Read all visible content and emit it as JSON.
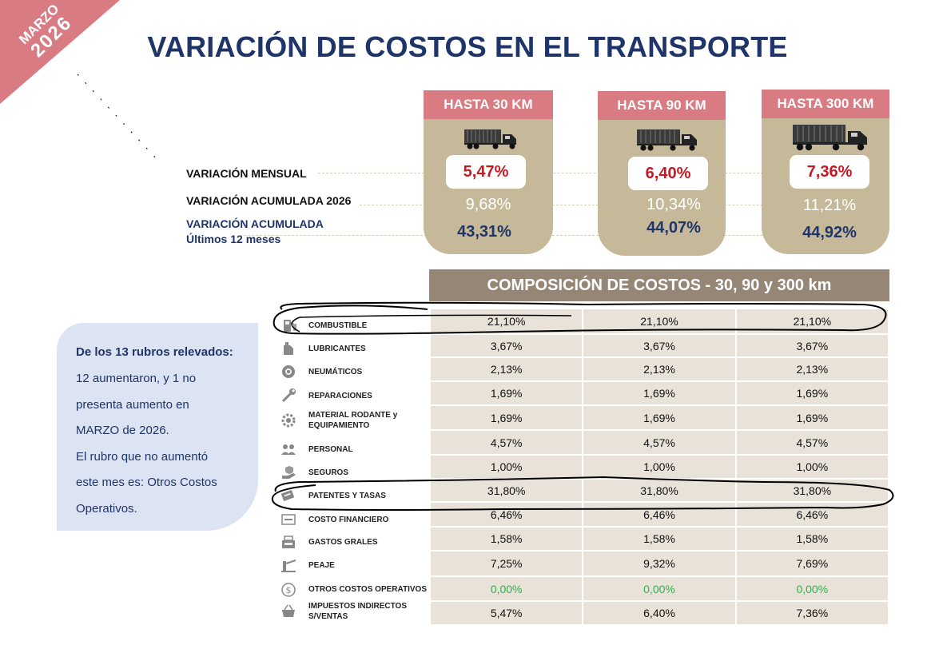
{
  "corner": {
    "month": "MARZO",
    "year": "2026",
    "color": "#d97b83"
  },
  "title": "VARIACIÓN DE COSTOS EN EL TRANSPORTE",
  "row_labels": {
    "monthly": "VARIACIÓN  MENSUAL",
    "accumulated": "VARIACIÓN ACUMULADA 2026",
    "last12_line1": "VARIACIÓN ACUMULADA",
    "last12_line2": "Últimos 12 meses"
  },
  "distances": [
    {
      "label": "HASTA 30 KM",
      "monthly": "5,47%",
      "accumulated": "9,68%",
      "last12": "43,31%"
    },
    {
      "label": "HASTA 90 KM",
      "monthly": "6,40%",
      "accumulated": "10,34%",
      "last12": "44,07%"
    },
    {
      "label": "HASTA 300 KM",
      "monthly": "7,36%",
      "accumulated": "11,21%",
      "last12": "44,92%"
    }
  ],
  "composition": {
    "title": "COMPOSICIÓN DE COSTOS - 30, 90 y 300 km",
    "rows": [
      {
        "label": "COMBUSTIBLE",
        "icon": "fuel-pump-icon",
        "values": [
          "21,10%",
          "21,10%",
          "21,10%"
        ]
      },
      {
        "label": "LUBRICANTES",
        "icon": "oil-can-icon",
        "values": [
          "3,67%",
          "3,67%",
          "3,67%"
        ]
      },
      {
        "label": "NEUMÁTICOS",
        "icon": "tire-icon",
        "values": [
          "2,13%",
          "2,13%",
          "2,13%"
        ]
      },
      {
        "label": "REPARACIONES",
        "icon": "wrench-icon",
        "values": [
          "1,69%",
          "1,69%",
          "1,69%"
        ]
      },
      {
        "label": "MATERIAL RODANTE y",
        "label2": "EQUIPAMIENTO",
        "icon": "gear-icon",
        "values": [
          "1,69%",
          "1,69%",
          "1,69%"
        ]
      },
      {
        "label": "PERSONAL",
        "icon": "people-icon",
        "values": [
          "4,57%",
          "4,57%",
          "4,57%"
        ]
      },
      {
        "label": "SEGUROS",
        "icon": "hand-shield-icon",
        "values": [
          "1,00%",
          "1,00%",
          "1,00%"
        ]
      },
      {
        "label": "PATENTES Y TASAS",
        "icon": "license-icon",
        "values": [
          "31,80%",
          "31,80%",
          "31,80%"
        ]
      },
      {
        "label": "COSTO FINANCIERO",
        "icon": "cost-icon",
        "values": [
          "6,46%",
          "6,46%",
          "6,46%"
        ]
      },
      {
        "label": "GASTOS GRALES",
        "icon": "cash-register-icon",
        "values": [
          "1,58%",
          "1,58%",
          "1,58%"
        ]
      },
      {
        "label": "PEAJE",
        "icon": "toll-barrier-icon",
        "values": [
          "7,25%",
          "9,32%",
          "7,69%"
        ]
      },
      {
        "label": "OTROS COSTOS OPERATIVOS",
        "icon": "dollar-circle-icon",
        "values": [
          "0,00%",
          "0,00%",
          "0,00%"
        ]
      },
      {
        "label": "IMPUESTOS INDIRECTOS",
        "label2": "S/VENTAS",
        "icon": "basket-icon",
        "values": [
          "5,47%",
          "6,40%",
          "7,36%"
        ]
      }
    ]
  },
  "info_box": {
    "heading": "De los 13 rubros relevados:",
    "lines": [
      "12 aumentaron, y 1 no",
      "presenta aumento en",
      "MARZO de 2026.",
      "El rubro que no aumentó",
      "este mes es: Otros Costos",
      "Operativos."
    ]
  },
  "colors": {
    "navy": "#1f3468",
    "pink": "#d97b83",
    "tan": "#c6b99a",
    "red": "#c41924",
    "green": "#2bb34a",
    "header_brown": "#958676"
  }
}
